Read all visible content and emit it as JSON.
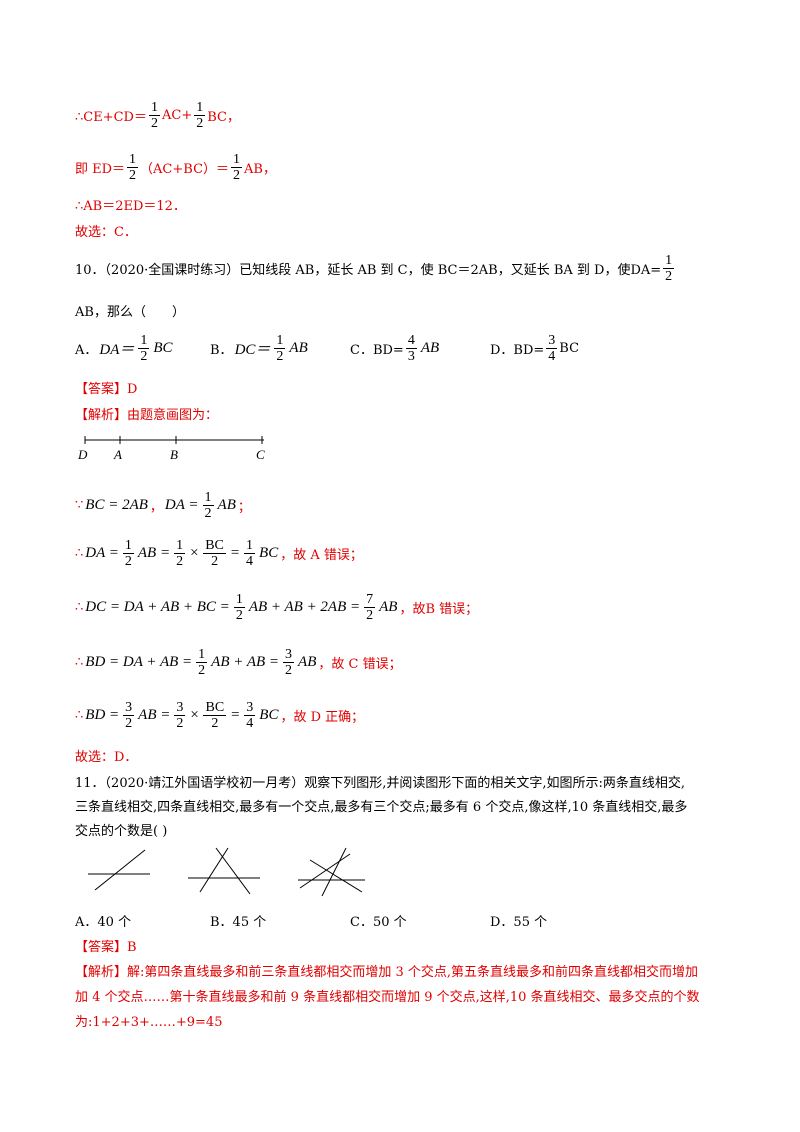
{
  "blocks": [
    {
      "color": "red",
      "parts": [
        "∴CE+CD＝",
        {
          "num": "1",
          "den": "2"
        },
        "AC+",
        {
          "num": "1",
          "den": "2"
        },
        "BC，"
      ]
    },
    {
      "color": "red",
      "parts": [
        "即 ED＝",
        {
          "num": "1",
          "den": "2"
        },
        "（AC+BC）＝",
        {
          "num": "1",
          "den": "2"
        },
        "AB，"
      ]
    },
    {
      "color": "red",
      "parts": [
        "∴AB＝2ED＝12．"
      ]
    },
    {
      "color": "red",
      "parts": [
        "故选：C．"
      ]
    },
    {
      "color": "black",
      "parts": [
        "10．（2020·全国课时练习）已知线段 AB，延长 AB 到 C，使 BC＝2AB，又延长 BA 到 D，使DA=",
        {
          "num": "1",
          "den": "2"
        }
      ]
    },
    {
      "color": "black",
      "parts": [
        "AB，那么（　　）"
      ]
    },
    {
      "color": "black",
      "options": [
        [
          "A．",
          {
            "math": "DA＝"
          },
          {
            "num": "1",
            "den": "2"
          },
          {
            "math": "BC"
          }
        ],
        [
          "B．",
          {
            "math": "DC＝"
          },
          {
            "num": "1",
            "den": "2"
          },
          {
            "math": "AB"
          }
        ],
        [
          "C．BD=",
          {
            "num": "4",
            "den": "3"
          },
          {
            "math": "AB"
          }
        ],
        [
          "D．BD=",
          {
            "num": "3",
            "den": "4"
          },
          "BC"
        ]
      ]
    },
    {
      "color": "red",
      "parts": [
        "【答案】D"
      ]
    },
    {
      "color": "red",
      "parts": [
        "【解析】由题意画图为："
      ]
    },
    {
      "color": "black",
      "labels": [
        "D",
        "A",
        "B",
        "C"
      ]
    },
    {
      "color": "red",
      "parts": [
        "∵ ",
        {
          "math": "BC = 2AB"
        },
        "，",
        {
          "math": "DA ="
        },
        {
          "num": "1",
          "den": "2"
        },
        {
          "math": "AB"
        },
        "；"
      ]
    },
    {
      "color": "red",
      "parts": [
        "∴ ",
        {
          "math": "DA ="
        },
        {
          "num": "1",
          "den": "2"
        },
        {
          "math": "AB ="
        },
        {
          "num": "1",
          "den": "2"
        },
        {
          "math": "×"
        },
        {
          "num": "BC",
          "den": "2"
        },
        {
          "math": "="
        },
        {
          "num": "1",
          "den": "4"
        },
        {
          "math": "BC"
        },
        "，故 A 错误；"
      ]
    },
    {
      "color": "red",
      "parts": [
        "∴ ",
        {
          "math": "DC = DA + AB + BC ="
        },
        {
          "num": "1",
          "den": "2"
        },
        {
          "math": "AB + AB + 2AB ="
        },
        {
          "num": "7",
          "den": "2"
        },
        {
          "math": "AB"
        },
        "，故B 错误；"
      ]
    },
    {
      "color": "red",
      "parts": [
        "∴ ",
        {
          "math": "BD = DA + AB ="
        },
        {
          "num": "1",
          "den": "2"
        },
        {
          "math": "AB + AB ="
        },
        {
          "num": "3",
          "den": "2"
        },
        {
          "math": "AB"
        },
        "，故 C 错误；"
      ]
    },
    {
      "color": "red",
      "parts": [
        "∴ ",
        {
          "math": "BD ="
        },
        {
          "num": "3",
          "den": "2"
        },
        {
          "math": "AB ="
        },
        {
          "num": "3",
          "den": "2"
        },
        {
          "math": "×"
        },
        {
          "num": "BC",
          "den": "2"
        },
        {
          "math": "="
        },
        {
          "num": "3",
          "den": "4"
        },
        {
          "math": "BC"
        },
        "，故 D 正确；"
      ]
    },
    {
      "color": "red",
      "parts": [
        "故选：D．"
      ]
    },
    {
      "color": "black",
      "parts": [
        "11．（2020·靖江外国语学校初一月考）观察下列图形,并阅读图形下面的相关文字,如图所示:两条直线相交,"
      ]
    },
    {
      "color": "black",
      "parts": [
        "三条直线相交,四条直线相交,最多有一个交点,最多有三个交点;最多有 6 个交点,像这样,10 条直线相交,最多"
      ]
    },
    {
      "color": "black",
      "parts": [
        "交点的个数是( )"
      ]
    },
    {
      "color": "black",
      "options": [
        [
          "A．40 个"
        ],
        [
          "B．45 个"
        ],
        [
          "C．50 个"
        ],
        [
          "D．55 个"
        ]
      ]
    },
    {
      "color": "red",
      "parts": [
        "【答案】B"
      ]
    },
    {
      "color": "red",
      "parts": [
        "【解析】解:第四条直线最多和前三条直线都相交而增加 3 个交点,第五条直线最多和前四条直线都相交而增加"
      ]
    },
    {
      "color": "red",
      "parts": [
        "加 4 个交点……第十条直线最多和前 9 条直线都相交而增加 9 个交点,这样,10 条直线相交、最多交点的个数"
      ]
    },
    {
      "color": "red",
      "parts": [
        "为:1+2+3+……+9=45"
      ]
    }
  ]
}
